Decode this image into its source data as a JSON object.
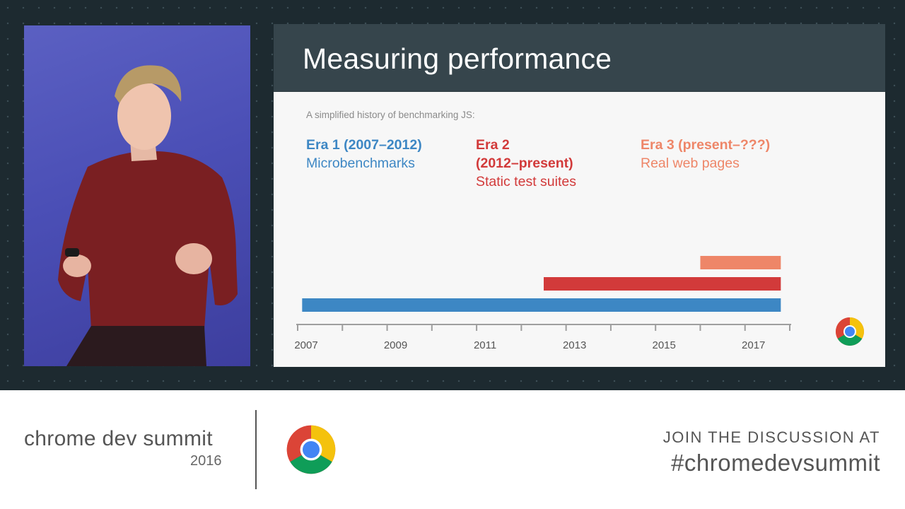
{
  "slide": {
    "title": "Measuring performance",
    "subtitle": "A simplified history of benchmarking JS:",
    "eras": [
      {
        "heading": "Era 1 (2007–2012)",
        "description": "Microbenchmarks",
        "color": "#3d87c4"
      },
      {
        "heading": "Era 2",
        "heading2": "(2012–present)",
        "description": "Static test suites",
        "color": "#d23a3a"
      },
      {
        "heading": "Era 3 (present–???)",
        "description": "Real web pages",
        "color": "#ee8668"
      }
    ]
  },
  "chart_data": {
    "type": "bar",
    "orientation": "horizontal-timeline",
    "x_ticks": [
      "2007",
      "2009",
      "2011",
      "2013",
      "2015",
      "2017"
    ],
    "xlim": [
      2007,
      2018
    ],
    "series": [
      {
        "start": 2007.1,
        "end": 2017.8,
        "color": "#3d87c4"
      },
      {
        "start": 2012.5,
        "end": 2017.8,
        "color": "#d23a3a"
      },
      {
        "start": 2016.0,
        "end": 2017.8,
        "color": "#ee8668"
      }
    ]
  },
  "banner": {
    "brand": "chrome dev summit",
    "year": "2016",
    "join": "JOIN THE DISCUSSION AT",
    "hashtag": "#chromedevsummit"
  }
}
